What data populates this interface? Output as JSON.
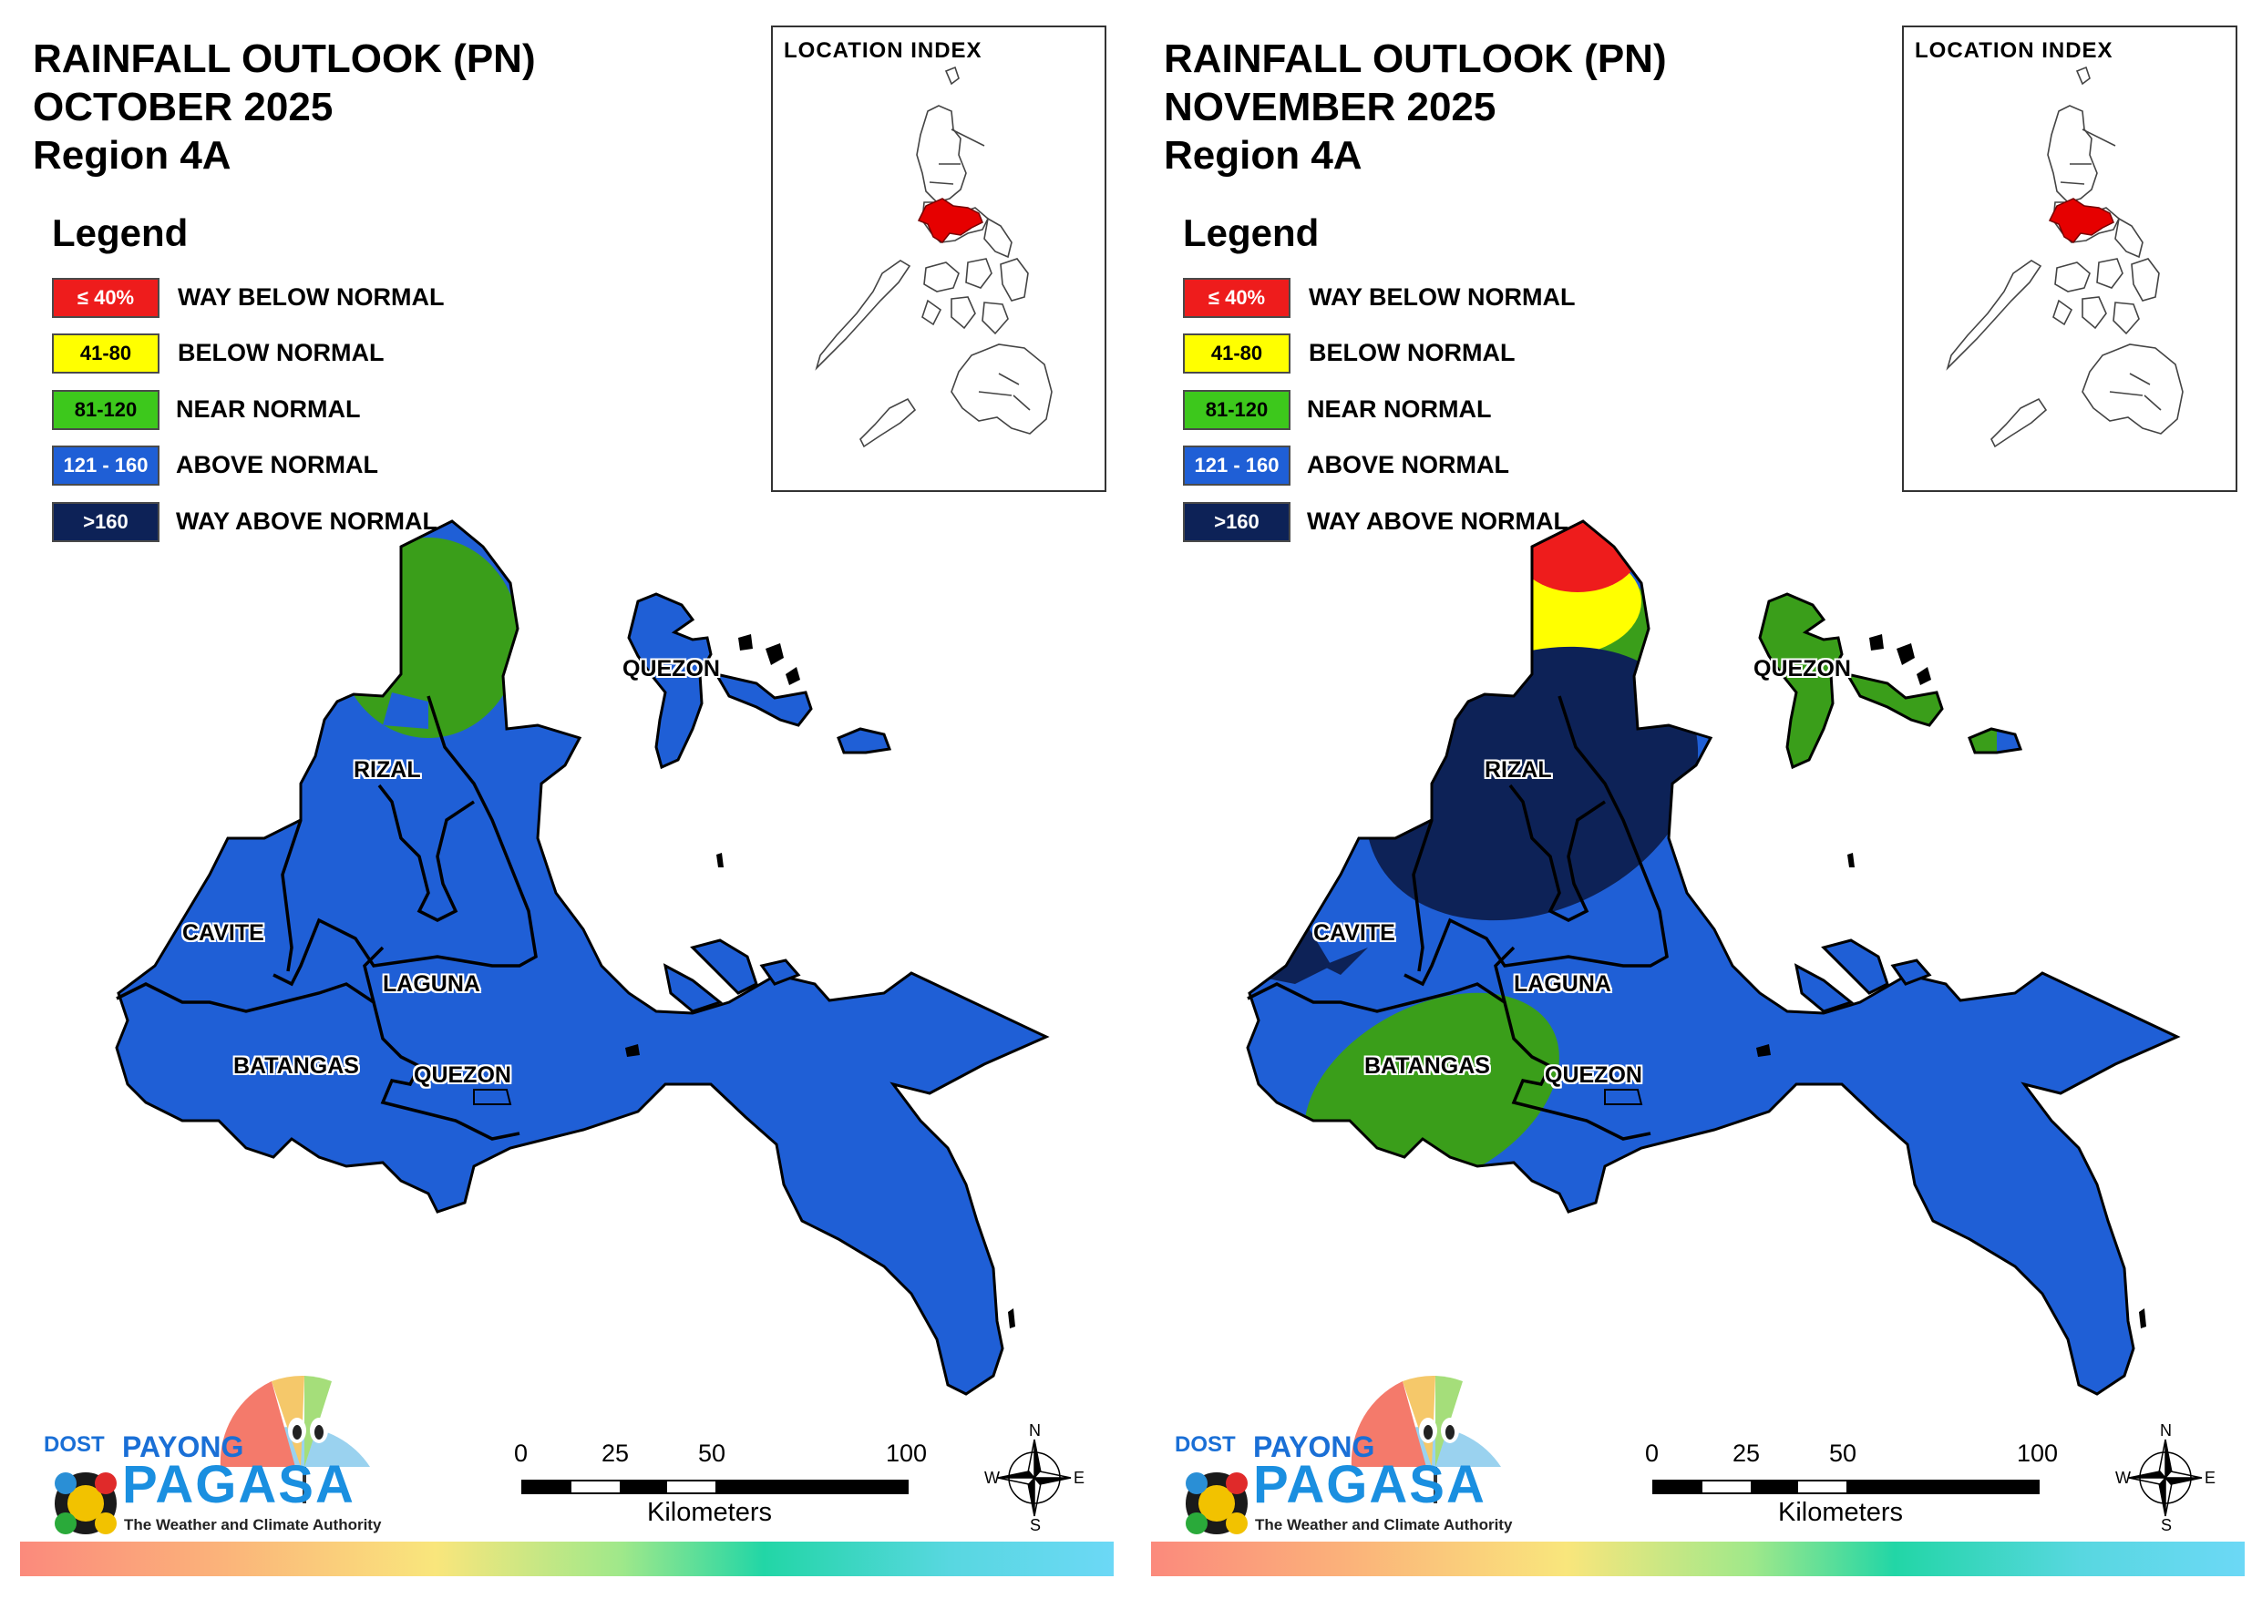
{
  "panels": [
    {
      "title_lines": [
        "RAINFALL OUTLOOK (PN)",
        "OCTOBER 2025",
        "Region 4A"
      ],
      "regions": {
        "north_tip": "green",
        "rizal_left": "green",
        "batangas_oval": "blue",
        "rizal_oval": "blue"
      }
    },
    {
      "title_lines": [
        "RAINFALL OUTLOOK (PN)",
        "NOVEMBER 2025",
        "Region 4A"
      ],
      "regions": {
        "north_tip": "red",
        "rizal_left": "navy",
        "batangas_oval": "green",
        "rizal_oval": "navy"
      }
    }
  ],
  "legend": {
    "title": "Legend",
    "items": [
      {
        "range": "≤ 40%",
        "label": "WAY BELOW NORMAL",
        "color": "#ee1c1c",
        "text_color": "#ffffff"
      },
      {
        "range": "41-80",
        "label": "BELOW NORMAL",
        "color": "#ffff00",
        "text_color": "#000000"
      },
      {
        "range": "81-120",
        "label": "NEAR NORMAL",
        "color": "#3dc81c",
        "text_color": "#000000"
      },
      {
        "range": "121 - 160",
        "label": "ABOVE NORMAL",
        "color": "#1f5fd6",
        "text_color": "#ffffff"
      },
      {
        "range": ">160",
        "label": "WAY ABOVE NORMAL",
        "color": "#0d2257",
        "text_color": "#ffffff"
      }
    ]
  },
  "inset": {
    "title": "LOCATION INDEX",
    "highlight_color": "#e60000"
  },
  "places": {
    "quezon_north": "QUEZON",
    "rizal": "RIZAL",
    "cavite": "CAVITE",
    "laguna": "LAGUNA",
    "batangas": "BATANGAS",
    "quezon_south": "QUEZON"
  },
  "scale": {
    "ticks": [
      "0",
      "25",
      "50",
      "100"
    ],
    "unit": "Kilometers"
  },
  "compass": {
    "n": "N",
    "s": "S",
    "e": "E",
    "w": "W"
  },
  "logo": {
    "dost": "DOST",
    "payong": "PAYONG",
    "pagasa": "PAGASA",
    "tagline": "The Weather and Climate Authority"
  },
  "colors": {
    "blue": "#1f5fd6",
    "green": "#3a9e1a",
    "red": "#ee1c1c",
    "yellow": "#ffff00",
    "light_green": "#3dc81c",
    "navy": "#0d2257",
    "outline": "#000000"
  }
}
